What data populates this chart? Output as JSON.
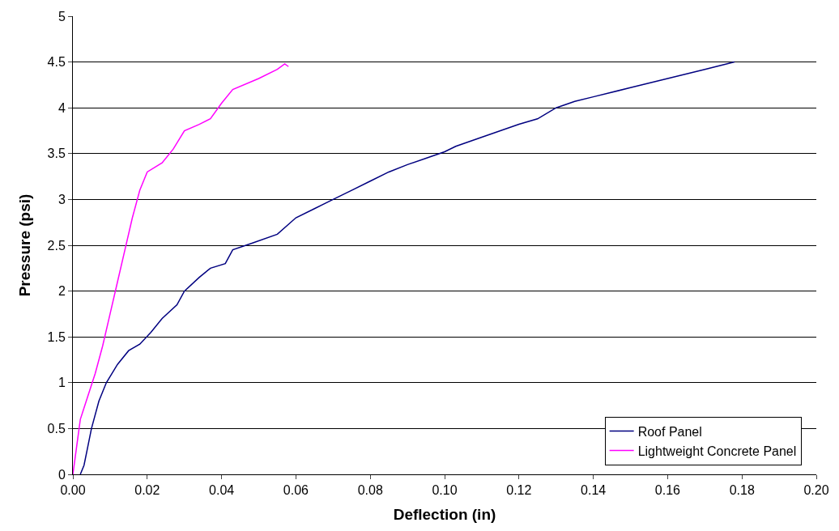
{
  "chart_data": {
    "type": "line",
    "xlabel": "Deflection (in)",
    "ylabel": "Pressure (psi)",
    "xlim": [
      0,
      0.2
    ],
    "ylim": [
      0,
      5
    ],
    "xticks": [
      {
        "value": 0,
        "label": "0.00"
      },
      {
        "value": 0.02,
        "label": "0.02"
      },
      {
        "value": 0.04,
        "label": "0.04"
      },
      {
        "value": 0.06,
        "label": "0.06"
      },
      {
        "value": 0.08,
        "label": "0.08"
      },
      {
        "value": 0.1,
        "label": "0.10"
      },
      {
        "value": 0.12,
        "label": "0.12"
      },
      {
        "value": 0.14,
        "label": "0.14"
      },
      {
        "value": 0.16,
        "label": "0.16"
      },
      {
        "value": 0.18,
        "label": "0.18"
      },
      {
        "value": 0.2,
        "label": "0.20"
      }
    ],
    "yticks": [
      0,
      0.5,
      1,
      1.5,
      2,
      2.5,
      3,
      3.5,
      4,
      4.5,
      5
    ],
    "grid": "y",
    "legend": "bottom right",
    "marker": "none",
    "line_style": "solid",
    "series": [
      {
        "name": "Roof Panel",
        "color": "#000080",
        "x": [
          0.002,
          0.003,
          0.004,
          0.005,
          0.007,
          0.009,
          0.012,
          0.015,
          0.018,
          0.021,
          0.024,
          0.028,
          0.03,
          0.034,
          0.037,
          0.041,
          0.043,
          0.048,
          0.055,
          0.06,
          0.065,
          0.07,
          0.075,
          0.08,
          0.085,
          0.09,
          0.095,
          0.1,
          0.103,
          0.11,
          0.12,
          0.125,
          0.13,
          0.135,
          0.14,
          0.15,
          0.16,
          0.17,
          0.178
        ],
        "values": [
          0,
          0.1,
          0.3,
          0.5,
          0.8,
          1.0,
          1.2,
          1.35,
          1.42,
          1.55,
          1.7,
          1.85,
          2.0,
          2.15,
          2.25,
          2.3,
          2.45,
          2.52,
          2.62,
          2.8,
          2.9,
          3.0,
          3.1,
          3.2,
          3.3,
          3.38,
          3.45,
          3.52,
          3.58,
          3.68,
          3.82,
          3.88,
          4.0,
          4.07,
          4.12,
          4.22,
          4.32,
          4.42,
          4.5
        ]
      },
      {
        "name": "Lightweight Concrete Panel",
        "color": "#ff00ff",
        "x": [
          0.0,
          0.001,
          0.002,
          0.004,
          0.006,
          0.008,
          0.01,
          0.012,
          0.014,
          0.016,
          0.018,
          0.02,
          0.024,
          0.027,
          0.03,
          0.034,
          0.037,
          0.04,
          0.043,
          0.05,
          0.055,
          0.057,
          0.058
        ],
        "values": [
          0,
          0.3,
          0.6,
          0.85,
          1.1,
          1.4,
          1.75,
          2.1,
          2.45,
          2.8,
          3.1,
          3.3,
          3.4,
          3.55,
          3.75,
          3.82,
          3.88,
          4.05,
          4.2,
          4.32,
          4.42,
          4.48,
          4.45
        ]
      }
    ]
  }
}
